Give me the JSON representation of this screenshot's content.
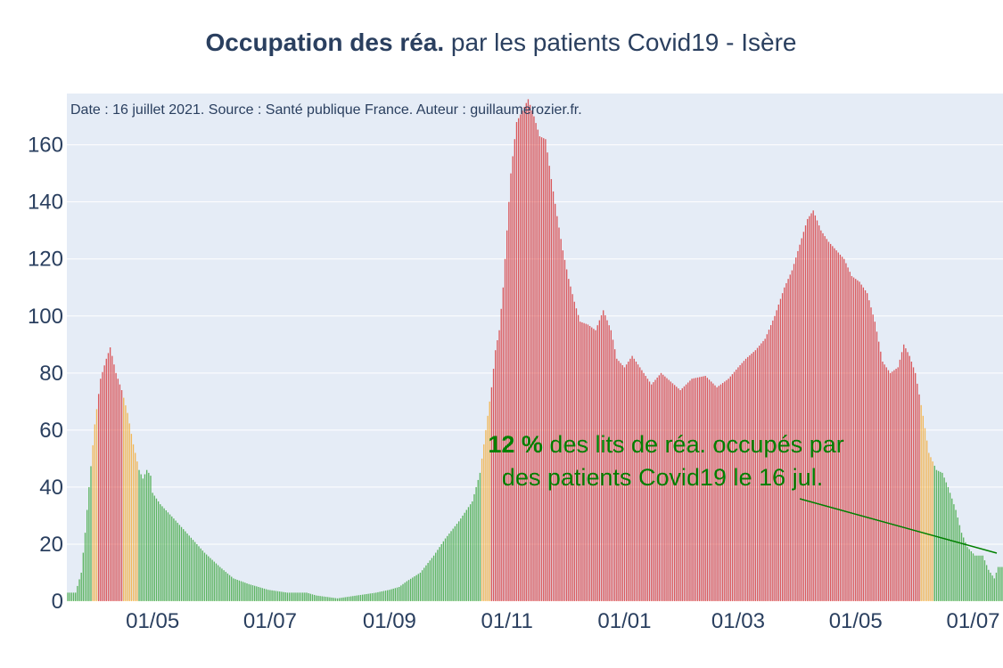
{
  "title": {
    "bold": "Occupation des réa.",
    "rest": " par les patients Covid19 - Isère"
  },
  "source_note": "Date : 16 juillet 2021. Source : Santé publique France. Auteur : guillaumerozier.fr.",
  "annotation": {
    "percent": "12  %",
    "line1_rest": " des lits de réa. occupés par",
    "line2": "des patients Covid19 le 16 jul."
  },
  "colors": {
    "background": "#e5ecf6",
    "grid": "#ffffff",
    "text": "#2a3f5f",
    "green": "#2ca02c",
    "orange": "#f5a623",
    "red": "#d62728",
    "annotation": "#008000"
  },
  "chart_data": {
    "type": "bar",
    "x_start": "2020-03-18",
    "x_end": "2021-07-16",
    "ylim": [
      0,
      178
    ],
    "yticks": [
      0,
      20,
      40,
      60,
      80,
      100,
      120,
      140,
      160
    ],
    "xticks": [
      {
        "date": "2020-05-01",
        "label": "01/05"
      },
      {
        "date": "2020-07-01",
        "label": "01/07"
      },
      {
        "date": "2020-09-01",
        "label": "01/09"
      },
      {
        "date": "2020-11-01",
        "label": "01/11"
      },
      {
        "date": "2021-01-01",
        "label": "01/01"
      },
      {
        "date": "2021-03-01",
        "label": "01/03"
      },
      {
        "date": "2021-05-01",
        "label": "01/05"
      },
      {
        "date": "2021-07-01",
        "label": "01/07"
      }
    ],
    "keypoints": [
      [
        "2020-03-18",
        3
      ],
      [
        "2020-03-22",
        3
      ],
      [
        "2020-03-25",
        10
      ],
      [
        "2020-03-27",
        24
      ],
      [
        "2020-03-29",
        40
      ],
      [
        "2020-04-01",
        62
      ],
      [
        "2020-04-04",
        78
      ],
      [
        "2020-04-07",
        85
      ],
      [
        "2020-04-09",
        89
      ],
      [
        "2020-04-12",
        80
      ],
      [
        "2020-04-15",
        74
      ],
      [
        "2020-04-18",
        66
      ],
      [
        "2020-04-21",
        55
      ],
      [
        "2020-04-24",
        46
      ],
      [
        "2020-04-26",
        43
      ],
      [
        "2020-04-28",
        46
      ],
      [
        "2020-04-30",
        44
      ],
      [
        "2020-05-01",
        38
      ],
      [
        "2020-05-05",
        34
      ],
      [
        "2020-05-12",
        29
      ],
      [
        "2020-05-20",
        23
      ],
      [
        "2020-05-28",
        17
      ],
      [
        "2020-06-05",
        12
      ],
      [
        "2020-06-12",
        8
      ],
      [
        "2020-06-20",
        6
      ],
      [
        "2020-06-30",
        4
      ],
      [
        "2020-07-10",
        3
      ],
      [
        "2020-07-20",
        3
      ],
      [
        "2020-07-25",
        2
      ],
      [
        "2020-08-05",
        1
      ],
      [
        "2020-08-15",
        2
      ],
      [
        "2020-08-25",
        3
      ],
      [
        "2020-09-01",
        4
      ],
      [
        "2020-09-06",
        5
      ],
      [
        "2020-09-10",
        7
      ],
      [
        "2020-09-17",
        10
      ],
      [
        "2020-09-24",
        16
      ],
      [
        "2020-09-30",
        22
      ],
      [
        "2020-10-07",
        28
      ],
      [
        "2020-10-14",
        35
      ],
      [
        "2020-10-18",
        45
      ],
      [
        "2020-10-20",
        55
      ],
      [
        "2020-10-22",
        65
      ],
      [
        "2020-10-24",
        75
      ],
      [
        "2020-10-26",
        88
      ],
      [
        "2020-10-28",
        95
      ],
      [
        "2020-10-30",
        110
      ],
      [
        "2020-11-01",
        130
      ],
      [
        "2020-11-03",
        150
      ],
      [
        "2020-11-06",
        168
      ],
      [
        "2020-11-09",
        172
      ],
      [
        "2020-11-12",
        176
      ],
      [
        "2020-11-15",
        170
      ],
      [
        "2020-11-18",
        163
      ],
      [
        "2020-11-21",
        162
      ],
      [
        "2020-11-24",
        148
      ],
      [
        "2020-11-27",
        135
      ],
      [
        "2020-11-30",
        123
      ],
      [
        "2020-12-03",
        113
      ],
      [
        "2020-12-06",
        105
      ],
      [
        "2020-12-09",
        98
      ],
      [
        "2020-12-13",
        97
      ],
      [
        "2020-12-17",
        95
      ],
      [
        "2020-12-21",
        102
      ],
      [
        "2020-12-25",
        95
      ],
      [
        "2020-12-28",
        85
      ],
      [
        "2021-01-01",
        82
      ],
      [
        "2021-01-05",
        86
      ],
      [
        "2021-01-10",
        81
      ],
      [
        "2021-01-15",
        76
      ],
      [
        "2021-01-20",
        80
      ],
      [
        "2021-01-25",
        77
      ],
      [
        "2021-01-30",
        74
      ],
      [
        "2021-02-05",
        78
      ],
      [
        "2021-02-12",
        79
      ],
      [
        "2021-02-18",
        75
      ],
      [
        "2021-02-24",
        78
      ],
      [
        "2021-03-01",
        82
      ],
      [
        "2021-03-05",
        85
      ],
      [
        "2021-03-10",
        88
      ],
      [
        "2021-03-15",
        92
      ],
      [
        "2021-03-20",
        100
      ],
      [
        "2021-03-25",
        110
      ],
      [
        "2021-03-29",
        116
      ],
      [
        "2021-04-02",
        125
      ],
      [
        "2021-04-06",
        134
      ],
      [
        "2021-04-09",
        137
      ],
      [
        "2021-04-13",
        130
      ],
      [
        "2021-04-17",
        126
      ],
      [
        "2021-04-21",
        123
      ],
      [
        "2021-04-25",
        120
      ],
      [
        "2021-04-29",
        114
      ],
      [
        "2021-05-03",
        112
      ],
      [
        "2021-05-07",
        108
      ],
      [
        "2021-05-11",
        98
      ],
      [
        "2021-05-15",
        84
      ],
      [
        "2021-05-19",
        80
      ],
      [
        "2021-05-23",
        82
      ],
      [
        "2021-05-26",
        90
      ],
      [
        "2021-05-29",
        86
      ],
      [
        "2021-06-01",
        80
      ],
      [
        "2021-06-05",
        65
      ],
      [
        "2021-06-08",
        52
      ],
      [
        "2021-06-12",
        46
      ],
      [
        "2021-06-15",
        45
      ],
      [
        "2021-06-18",
        40
      ],
      [
        "2021-06-22",
        32
      ],
      [
        "2021-06-25",
        24
      ],
      [
        "2021-06-28",
        19
      ],
      [
        "2021-07-02",
        16
      ],
      [
        "2021-07-06",
        16
      ],
      [
        "2021-07-09",
        11
      ],
      [
        "2021-07-12",
        8
      ],
      [
        "2021-07-14",
        12
      ],
      [
        "2021-07-16",
        12
      ]
    ]
  }
}
